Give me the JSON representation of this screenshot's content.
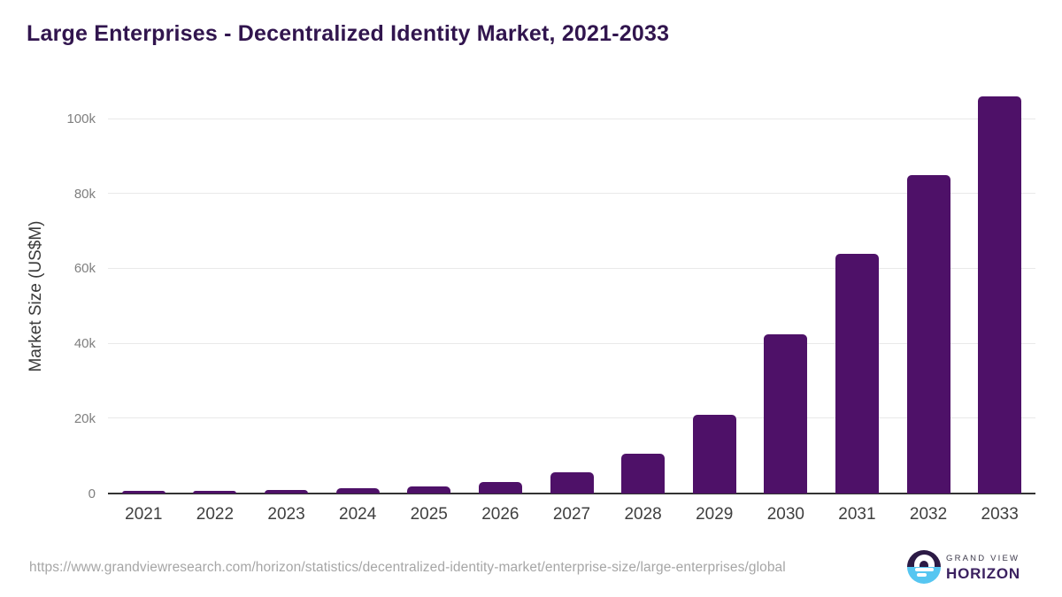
{
  "chart_data": {
    "type": "bar",
    "title": "Large Enterprises - Decentralized Identity Market, 2021-2033",
    "ylabel": "Market Size (US$M)",
    "xlabel": "",
    "categories": [
      "2021",
      "2022",
      "2023",
      "2024",
      "2025",
      "2026",
      "2027",
      "2028",
      "2029",
      "2030",
      "2031",
      "2032",
      "2033"
    ],
    "values": [
      600,
      750,
      1050,
      1450,
      2000,
      3100,
      5600,
      10700,
      21000,
      42500,
      64000,
      85000,
      106000
    ],
    "ylim": [
      0,
      108000
    ],
    "yticks": [
      {
        "label": "0",
        "value": 0
      },
      {
        "label": "20k",
        "value": 20000
      },
      {
        "label": "40k",
        "value": 40000
      },
      {
        "label": "60k",
        "value": 60000
      },
      {
        "label": "80k",
        "value": 80000
      },
      {
        "label": "100k",
        "value": 100000
      }
    ],
    "grid": true,
    "legend": "none"
  },
  "colors": {
    "bar": "#4e1168",
    "title": "#31154e",
    "gridline": "#e9e9e9",
    "axis_line": "#333333",
    "ytick_text": "#7f7f7f",
    "xtick_text": "#3f3f3f",
    "ylabel_text": "#3a3a3a",
    "url_text": "#a6a6a6",
    "logo_purple": "#2c1a45",
    "logo_blue": "#56c6f1",
    "logo_name_small": "#3d3a4b",
    "logo_name_big": "#3b2160"
  },
  "footer": {
    "source_url": "https://www.grandviewresearch.com/horizon/statistics/decentralized-identity-market/enterprise-size/large-enterprises/global",
    "logo": {
      "brand_small": "GRAND VIEW",
      "brand_big": "HORIZON"
    }
  }
}
